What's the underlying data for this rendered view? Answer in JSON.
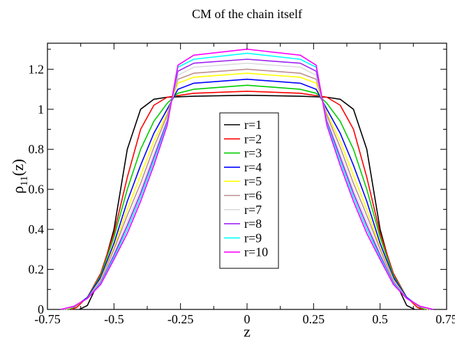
{
  "chart_data": {
    "type": "line",
    "title": "CM of the chain itself",
    "xlabel": "z",
    "ylabel_main": "ρ",
    "ylabel_sub": "11",
    "ylabel_tail": "(z)",
    "xlim": [
      -0.75,
      0.75
    ],
    "ylim": [
      0,
      1.33
    ],
    "xticks": [
      -0.75,
      -0.5,
      -0.25,
      0,
      0.25,
      0.5,
      0.75
    ],
    "xtick_labels": [
      "-0.75",
      "-0.5",
      "-0.25",
      "0",
      "0.25",
      "0.5",
      "0.75"
    ],
    "yticks": [
      0,
      0.2,
      0.4,
      0.6,
      0.8,
      1,
      1.2
    ],
    "ytick_labels": [
      "0",
      "0.2",
      "0.4",
      "0.6",
      "0.8",
      "1",
      "1.2"
    ],
    "grid": false,
    "legend_position": "center",
    "series": [
      {
        "name": "r=1",
        "color": "#000000",
        "plateau": 1.07,
        "profile": [
          [
            0.0,
            1.07
          ],
          [
            0.2,
            1.065
          ],
          [
            0.3,
            1.06
          ],
          [
            0.35,
            1.05
          ],
          [
            0.4,
            1.0
          ],
          [
            0.45,
            0.8
          ],
          [
            0.5,
            0.4
          ],
          [
            0.55,
            0.16
          ],
          [
            0.6,
            0.02
          ],
          [
            0.63,
            0.0
          ]
        ]
      },
      {
        "name": "r=2",
        "color": "#ff0000",
        "plateau": 1.09,
        "profile": [
          [
            0.0,
            1.09
          ],
          [
            0.2,
            1.08
          ],
          [
            0.3,
            1.06
          ],
          [
            0.35,
            1.02
          ],
          [
            0.4,
            0.9
          ],
          [
            0.45,
            0.66
          ],
          [
            0.5,
            0.38
          ],
          [
            0.55,
            0.18
          ],
          [
            0.6,
            0.06
          ],
          [
            0.64,
            0.01
          ],
          [
            0.66,
            0.0
          ]
        ]
      },
      {
        "name": "r=3",
        "color": "#00cc00",
        "plateau": 1.12,
        "profile": [
          [
            0.0,
            1.12
          ],
          [
            0.2,
            1.1
          ],
          [
            0.26,
            1.08
          ],
          [
            0.3,
            1.03
          ],
          [
            0.35,
            0.94
          ],
          [
            0.4,
            0.8
          ],
          [
            0.45,
            0.6
          ],
          [
            0.5,
            0.36
          ],
          [
            0.55,
            0.17
          ],
          [
            0.6,
            0.06
          ],
          [
            0.65,
            0.01
          ],
          [
            0.67,
            0.0
          ]
        ]
      },
      {
        "name": "r=4",
        "color": "#0000ff",
        "plateau": 1.15,
        "profile": [
          [
            0.0,
            1.15
          ],
          [
            0.2,
            1.13
          ],
          [
            0.26,
            1.1
          ],
          [
            0.3,
            1.0
          ],
          [
            0.35,
            0.88
          ],
          [
            0.4,
            0.72
          ],
          [
            0.45,
            0.54
          ],
          [
            0.5,
            0.33
          ],
          [
            0.55,
            0.16
          ],
          [
            0.6,
            0.06
          ],
          [
            0.65,
            0.012
          ],
          [
            0.68,
            0.0
          ]
        ]
      },
      {
        "name": "r=5",
        "color": "#ffff00",
        "plateau": 1.18,
        "profile": [
          [
            0.0,
            1.18
          ],
          [
            0.2,
            1.16
          ],
          [
            0.26,
            1.13
          ],
          [
            0.3,
            0.98
          ],
          [
            0.35,
            0.84
          ],
          [
            0.4,
            0.67
          ],
          [
            0.45,
            0.5
          ],
          [
            0.5,
            0.31
          ],
          [
            0.55,
            0.15
          ],
          [
            0.6,
            0.055
          ],
          [
            0.65,
            0.013
          ],
          [
            0.68,
            0.0
          ]
        ]
      },
      {
        "name": "r=6",
        "color": "#bc8f8f",
        "plateau": 1.2,
        "profile": [
          [
            0.0,
            1.2
          ],
          [
            0.2,
            1.18
          ],
          [
            0.26,
            1.15
          ],
          [
            0.3,
            0.97
          ],
          [
            0.35,
            0.81
          ],
          [
            0.4,
            0.63
          ],
          [
            0.45,
            0.47
          ],
          [
            0.5,
            0.3
          ],
          [
            0.55,
            0.145
          ],
          [
            0.6,
            0.055
          ],
          [
            0.65,
            0.014
          ],
          [
            0.69,
            0.0
          ]
        ]
      },
      {
        "name": "r=7",
        "color": "#dcdcdc",
        "plateau": 1.23,
        "profile": [
          [
            0.0,
            1.23
          ],
          [
            0.2,
            1.21
          ],
          [
            0.26,
            1.17
          ],
          [
            0.3,
            0.95
          ],
          [
            0.35,
            0.78
          ],
          [
            0.4,
            0.6
          ],
          [
            0.45,
            0.44
          ],
          [
            0.5,
            0.28
          ],
          [
            0.55,
            0.14
          ],
          [
            0.6,
            0.055
          ],
          [
            0.65,
            0.015
          ],
          [
            0.69,
            0.0
          ]
        ]
      },
      {
        "name": "r=8",
        "color": "#a020f0",
        "plateau": 1.25,
        "profile": [
          [
            0.0,
            1.25
          ],
          [
            0.2,
            1.23
          ],
          [
            0.26,
            1.19
          ],
          [
            0.3,
            0.94
          ],
          [
            0.35,
            0.76
          ],
          [
            0.4,
            0.58
          ],
          [
            0.45,
            0.42
          ],
          [
            0.5,
            0.27
          ],
          [
            0.55,
            0.135
          ],
          [
            0.6,
            0.055
          ],
          [
            0.65,
            0.015
          ],
          [
            0.7,
            0.0
          ]
        ]
      },
      {
        "name": "r=9",
        "color": "#00ffff",
        "plateau": 1.28,
        "profile": [
          [
            0.0,
            1.28
          ],
          [
            0.2,
            1.25
          ],
          [
            0.26,
            1.21
          ],
          [
            0.3,
            0.93
          ],
          [
            0.35,
            0.74
          ],
          [
            0.4,
            0.56
          ],
          [
            0.45,
            0.4
          ],
          [
            0.5,
            0.26
          ],
          [
            0.55,
            0.13
          ],
          [
            0.6,
            0.055
          ],
          [
            0.65,
            0.016
          ],
          [
            0.7,
            0.0
          ]
        ]
      },
      {
        "name": "r=10",
        "color": "#ff00ff",
        "plateau": 1.3,
        "profile": [
          [
            0.0,
            1.3
          ],
          [
            0.2,
            1.27
          ],
          [
            0.26,
            1.22
          ],
          [
            0.3,
            0.92
          ],
          [
            0.35,
            0.72
          ],
          [
            0.4,
            0.54
          ],
          [
            0.45,
            0.38
          ],
          [
            0.5,
            0.25
          ],
          [
            0.55,
            0.125
          ],
          [
            0.6,
            0.055
          ],
          [
            0.65,
            0.016
          ],
          [
            0.7,
            0.0
          ]
        ]
      }
    ]
  }
}
